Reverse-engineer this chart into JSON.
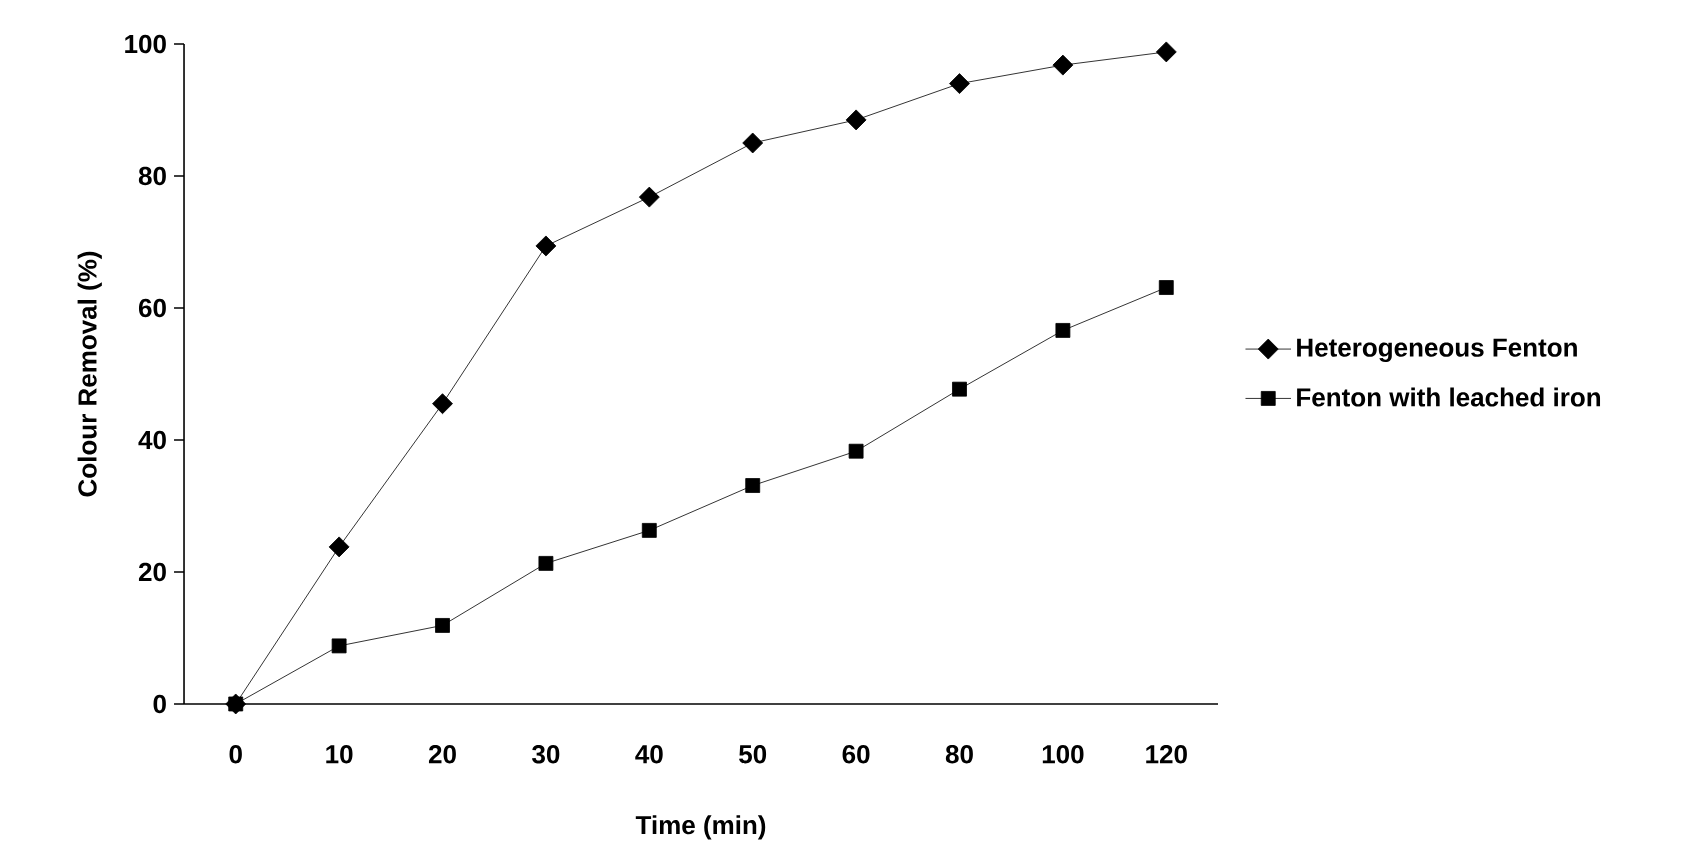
{
  "chart_data": {
    "type": "line",
    "xlabel": "Time (min)",
    "ylabel": "Colour Removal (%)",
    "categories": [
      "0",
      "10",
      "20",
      "30",
      "40",
      "50",
      "60",
      "80",
      "100",
      "120"
    ],
    "series": [
      {
        "name": "Heterogeneous Fenton",
        "color": "#000000",
        "marker": "diamond",
        "values": [
          0,
          23.8,
          45.5,
          69.4,
          76.8,
          85,
          88.5,
          94,
          96.8,
          98.8
        ]
      },
      {
        "name": "Fenton with leached iron",
        "color": "#000000",
        "marker": "square",
        "values": [
          0,
          8.8,
          11.9,
          21.3,
          26.3,
          33.1,
          38.3,
          47.7,
          56.6,
          63.1
        ]
      }
    ],
    "ylim": [
      0,
      100
    ],
    "yticks": [
      0,
      20,
      40,
      60,
      80,
      100
    ],
    "grid": false,
    "legend": "right",
    "line_style": "solid"
  }
}
